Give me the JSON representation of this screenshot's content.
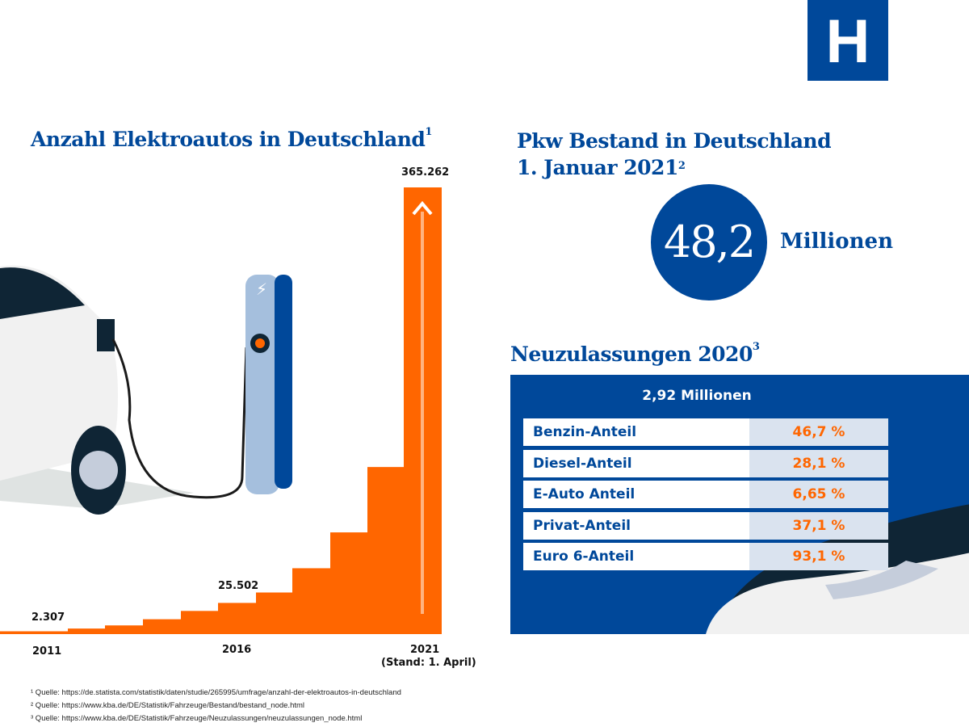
{
  "logo": {
    "letter": "H"
  },
  "left": {
    "title": "Anzahl Elektroautos in Deutschland",
    "title_sup": "1"
  },
  "chart_data": {
    "type": "bar",
    "title": "Anzahl Elektroautos in Deutschland",
    "categories": [
      "2011",
      "2012",
      "2013",
      "2014",
      "2015",
      "2016",
      "2017",
      "2018",
      "2019",
      "2020",
      "2021"
    ],
    "values": [
      2307,
      4541,
      7114,
      12156,
      18948,
      25502,
      34022,
      53861,
      83175,
      136617,
      365262
    ],
    "labeled_values": {
      "2011": "2.307",
      "2016": "25.502",
      "2021": "365.262"
    },
    "tick_labels": [
      "2011",
      "2016",
      "2021"
    ],
    "tick_note": "(Stand: 1. April)",
    "xlabel": "",
    "ylabel": "",
    "ylim": [
      0,
      365262
    ],
    "grid": false,
    "color": "#ff6600"
  },
  "right": {
    "title_line1": "Pkw Bestand in Deutschland",
    "title_line2": "1. Januar 2021",
    "title_sup": "2",
    "stock_value": "48,2",
    "stock_unit": "Millionen",
    "new_title": "Neuzulassungen 2020",
    "new_sup": "3",
    "new_total": "2,92 Millionen",
    "rows": [
      {
        "label": "Benzin-Anteil",
        "value": "46,7 %"
      },
      {
        "label": "Diesel-Anteil",
        "value": "28,1 %"
      },
      {
        "label": "E-Auto Anteil",
        "value": "6,65 %"
      },
      {
        "label": "Privat-Anteil",
        "value": "37,1 %"
      },
      {
        "label": "Euro 6-Anteil",
        "value": "93,1 %"
      }
    ]
  },
  "footnotes": [
    "¹ Quelle: https://de.statista.com/statistik/daten/studie/265995/umfrage/anzahl-der-elektroautos-in-deutschland",
    "² Quelle: https://www.kba.de/DE/Statistik/Fahrzeuge/Bestand/bestand_node.html",
    "³ Quelle: https://www.kba.de/DE/Statistik/Fahrzeuge/Neuzulassungen/neuzulassungen_node.html"
  ],
  "colors": {
    "blue": "#00489a",
    "orange": "#ff6600",
    "light": "#dae3ef"
  }
}
